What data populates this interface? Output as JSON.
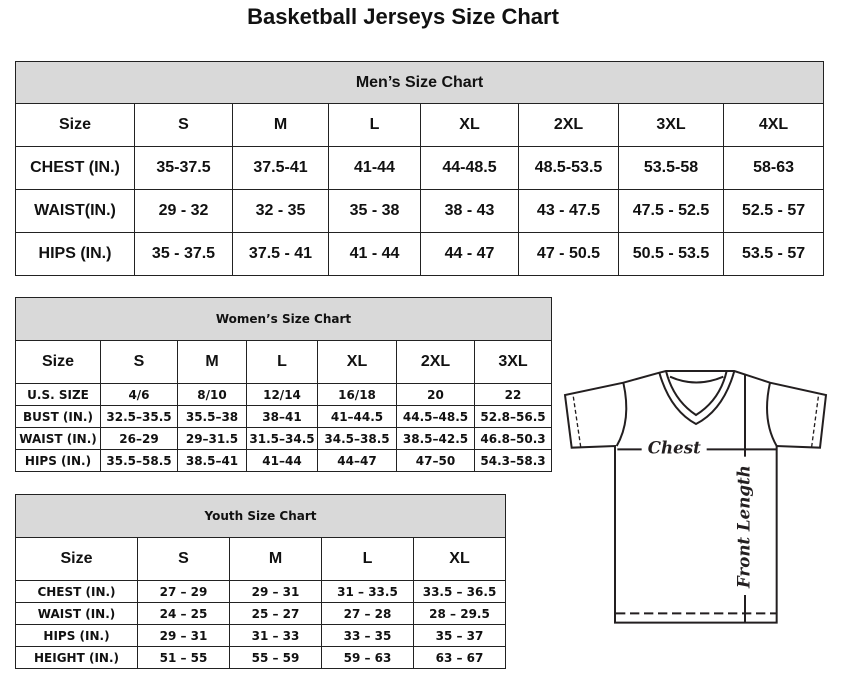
{
  "title": "Basketball Jerseys Size Chart",
  "men": {
    "heading": "Men’s Size Chart",
    "rows": [
      [
        "Size",
        "S",
        "M",
        "L",
        "XL",
        "2XL",
        "3XL",
        "4XL"
      ],
      [
        "CHEST (IN.)",
        "35-37.5",
        "37.5-41",
        "41-44",
        "44-48.5",
        "48.5-53.5",
        "53.5-58",
        "58-63"
      ],
      [
        "WAIST(IN.)",
        "29 - 32",
        "32 - 35",
        "35 - 38",
        "38 - 43",
        "43 - 47.5",
        "47.5 - 52.5",
        "52.5 - 57"
      ],
      [
        "HIPS (IN.)",
        "35 - 37.5",
        "37.5 - 41",
        "41 - 44",
        "44 - 47",
        "47 - 50.5",
        "50.5 - 53.5",
        "53.5 - 57"
      ]
    ]
  },
  "women": {
    "heading": "Women’s Size Chart",
    "rows": [
      [
        "Size",
        "S",
        "M",
        "L",
        "XL",
        "2XL",
        "3XL"
      ],
      [
        "U.S. SIZE",
        "4/6",
        "8/10",
        "12/14",
        "16/18",
        "20",
        "22"
      ],
      [
        "BUST (IN.)",
        "32.5–35.5",
        "35.5–38",
        "38–41",
        "41–44.5",
        "44.5–48.5",
        "52.8–56.5"
      ],
      [
        "WAIST (IN.)",
        "26–29",
        "29–31.5",
        "31.5–34.5",
        "34.5–38.5",
        "38.5–42.5",
        "46.8–50.3"
      ],
      [
        "HIPS (IN.)",
        "35.5–58.5",
        "38.5–41",
        "41–44",
        "44–47",
        "47–50",
        "54.3–58.3"
      ]
    ]
  },
  "youth": {
    "heading": "Youth Size Chart",
    "rows": [
      [
        "Size",
        "S",
        "M",
        "L",
        "XL"
      ],
      [
        "CHEST (IN.)",
        "27 – 29",
        "29 – 31",
        "31 – 33.5",
        "33.5 – 36.5"
      ],
      [
        "WAIST (IN.)",
        "24 – 25",
        "25 – 27",
        "27 – 28",
        "28 – 29.5"
      ],
      [
        "HIPS (IN.)",
        "29 – 31",
        "31 – 33",
        "33 – 35",
        "35 – 37"
      ],
      [
        "HEIGHT (IN.)",
        "51 – 55",
        "55 – 59",
        "59 – 63",
        "63 – 67"
      ]
    ]
  },
  "diagram": {
    "chest_label": "Chest",
    "length_label": "Front Length"
  }
}
